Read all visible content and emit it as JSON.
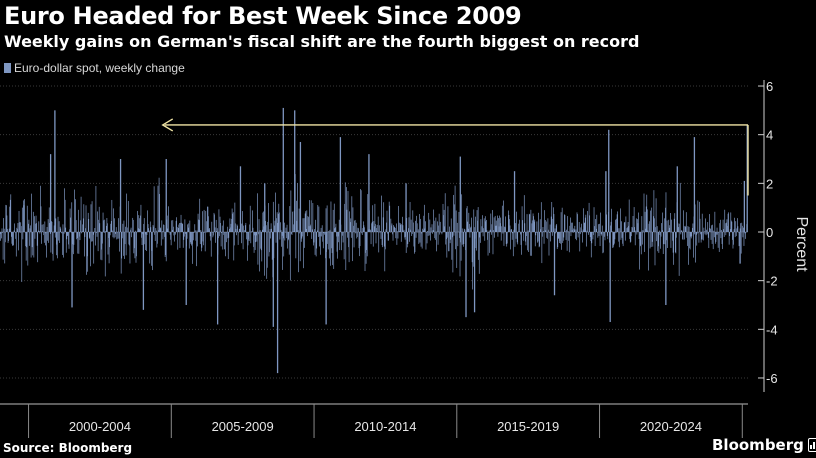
{
  "header": {
    "title": "Euro Headed for Best Week Since 2009",
    "subtitle": "Weekly gains on German's fiscal shift are the fourth biggest on record"
  },
  "legend": {
    "label": "Euro-dollar spot, weekly change",
    "color": "#7f97c2"
  },
  "footer": {
    "source": "Source: Bloomberg",
    "logo": "Bloomberg"
  },
  "colors": {
    "background": "#000000",
    "bars": "#7f97c2",
    "arrow": "#f2e6a6",
    "grid": "#3a3a3a",
    "text": "#ffffff"
  },
  "chart_data": {
    "type": "bar",
    "title": "Euro Headed for Best Week Since 2009",
    "ylabel": "Percent",
    "xlabel": "",
    "ylim": [
      -7,
      6
    ],
    "yticks": [
      6,
      4,
      2,
      0,
      -2,
      -4,
      -6
    ],
    "ytick_labels": [
      "6",
      "4",
      "2",
      "0",
      "-2",
      "-4",
      "-6"
    ],
    "period_labels": [
      "2000-2004",
      "2005-2009",
      "2010-2014",
      "2015-2019",
      "2020-2024"
    ],
    "x_start_year": 1999,
    "x_end_year": 2025.2,
    "annotation": {
      "type": "arrow",
      "from_year": 2025.2,
      "to_year": 2004.7,
      "value": 4.4
    },
    "highlights": [
      {
        "year": 2000.9,
        "value": 5.0
      },
      {
        "year": 2000.75,
        "value": 3.2
      },
      {
        "year": 2001.5,
        "value": -3.1
      },
      {
        "year": 2003.2,
        "value": 3.0
      },
      {
        "year": 2004.0,
        "value": -3.2
      },
      {
        "year": 2004.8,
        "value": 3.0
      },
      {
        "year": 2005.5,
        "value": -3.0
      },
      {
        "year": 2006.6,
        "value": -3.8
      },
      {
        "year": 2007.4,
        "value": 2.7
      },
      {
        "year": 2008.25,
        "value": 2.0
      },
      {
        "year": 2008.55,
        "value": -3.9
      },
      {
        "year": 2008.7,
        "value": -5.8
      },
      {
        "year": 2008.9,
        "value": 5.1
      },
      {
        "year": 2009.3,
        "value": 5.0
      },
      {
        "year": 2009.5,
        "value": 3.7
      },
      {
        "year": 2010.4,
        "value": -3.8
      },
      {
        "year": 2010.9,
        "value": 3.9
      },
      {
        "year": 2011.9,
        "value": 3.2
      },
      {
        "year": 2013.2,
        "value": 2.0
      },
      {
        "year": 2015.1,
        "value": 3.1
      },
      {
        "year": 2015.3,
        "value": -3.5
      },
      {
        "year": 2015.6,
        "value": -3.3
      },
      {
        "year": 2017.0,
        "value": 2.5
      },
      {
        "year": 2018.4,
        "value": -2.6
      },
      {
        "year": 2020.2,
        "value": 2.5
      },
      {
        "year": 2020.3,
        "value": 4.2
      },
      {
        "year": 2020.35,
        "value": -3.7
      },
      {
        "year": 2022.3,
        "value": -3.0
      },
      {
        "year": 2022.7,
        "value": 2.7
      },
      {
        "year": 2023.3,
        "value": 3.9
      },
      {
        "year": 2024.9,
        "value": -1.3
      },
      {
        "year": 2025.05,
        "value": 2.1
      },
      {
        "year": 2025.15,
        "value": 4.4
      }
    ]
  }
}
